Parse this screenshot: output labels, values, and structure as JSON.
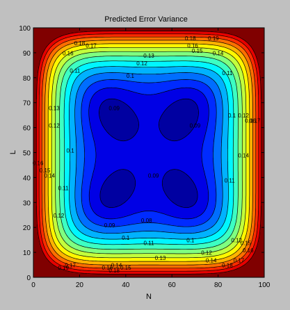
{
  "chart_data": {
    "type": "contour",
    "title": "Predicted Error Variance",
    "xlabel": "N",
    "ylabel": "L",
    "xlim": [
      0,
      100
    ],
    "ylim": [
      0,
      100
    ],
    "x_ticks": [
      "0",
      "20",
      "40",
      "60",
      "80",
      "100"
    ],
    "y_ticks": [
      "0",
      "10",
      "20",
      "30",
      "40",
      "50",
      "60",
      "70",
      "80",
      "90",
      "100"
    ],
    "colormap": "jet",
    "color_range": [
      0.08,
      0.23
    ],
    "contour_levels": [
      0.08,
      0.09,
      0.1,
      0.11,
      0.12,
      0.13,
      0.14,
      0.15,
      0.16,
      0.17,
      0.18,
      0.19,
      0.2,
      0.21,
      0.22
    ],
    "minima": [
      {
        "x": 32,
        "y": 30,
        "value": 0.08
      },
      {
        "x": 68,
        "y": 30,
        "value": 0.08
      },
      {
        "x": 32,
        "y": 68,
        "value": 0.09
      },
      {
        "x": 68,
        "y": 68,
        "value": 0.09
      }
    ],
    "contour_labels": [
      {
        "x": 68,
        "y": 95,
        "text": "0.18"
      },
      {
        "x": 78,
        "y": 95,
        "text": "0.19"
      },
      {
        "x": 20,
        "y": 93,
        "text": "0.18"
      },
      {
        "x": 25,
        "y": 92,
        "text": "0.17"
      },
      {
        "x": 69,
        "y": 92,
        "text": "0.16"
      },
      {
        "x": 71,
        "y": 90,
        "text": "0.15"
      },
      {
        "x": 15,
        "y": 89,
        "text": "0.16"
      },
      {
        "x": 80,
        "y": 89,
        "text": "0.14"
      },
      {
        "x": 50,
        "y": 88,
        "text": "0.13"
      },
      {
        "x": 47,
        "y": 85,
        "text": "0.12"
      },
      {
        "x": 18,
        "y": 82,
        "text": "0.11"
      },
      {
        "x": 84,
        "y": 81,
        "text": "0.11"
      },
      {
        "x": 42,
        "y": 80,
        "text": "0.1"
      },
      {
        "x": 9,
        "y": 67,
        "text": "0.13"
      },
      {
        "x": 9,
        "y": 60,
        "text": "0.12"
      },
      {
        "x": 35,
        "y": 67,
        "text": "0.09"
      },
      {
        "x": 70,
        "y": 60,
        "text": "0.09"
      },
      {
        "x": 86,
        "y": 64,
        "text": "0.1"
      },
      {
        "x": 91,
        "y": 64,
        "text": "0.12"
      },
      {
        "x": 94,
        "y": 62,
        "text": "0.16"
      },
      {
        "x": 96,
        "y": 62,
        "text": "0.17"
      },
      {
        "x": 16,
        "y": 50,
        "text": "0.1"
      },
      {
        "x": 2,
        "y": 45,
        "text": "0.16"
      },
      {
        "x": 5,
        "y": 42,
        "text": "0.15"
      },
      {
        "x": 7,
        "y": 40,
        "text": "0.14"
      },
      {
        "x": 13,
        "y": 35,
        "text": "0.11"
      },
      {
        "x": 52,
        "y": 40,
        "text": "0.09"
      },
      {
        "x": 85,
        "y": 38,
        "text": "0.11"
      },
      {
        "x": 91,
        "y": 48,
        "text": "0.14"
      },
      {
        "x": 11,
        "y": 24,
        "text": "0.12"
      },
      {
        "x": 33,
        "y": 20,
        "text": "0.09"
      },
      {
        "x": 49,
        "y": 22,
        "text": "0.08"
      },
      {
        "x": 40,
        "y": 15,
        "text": "0.1"
      },
      {
        "x": 50,
        "y": 13,
        "text": "0.11"
      },
      {
        "x": 68,
        "y": 14,
        "text": "0.1"
      },
      {
        "x": 55,
        "y": 7,
        "text": "0.13"
      },
      {
        "x": 75,
        "y": 9,
        "text": "0.12"
      },
      {
        "x": 77,
        "y": 6,
        "text": "0.14"
      },
      {
        "x": 88,
        "y": 14,
        "text": "0.12"
      },
      {
        "x": 92,
        "y": 13,
        "text": "0.15"
      },
      {
        "x": 93,
        "y": 10,
        "text": "0.16"
      },
      {
        "x": 84,
        "y": 4,
        "text": "0.18"
      },
      {
        "x": 89,
        "y": 6,
        "text": "0.17"
      },
      {
        "x": 36,
        "y": 4,
        "text": "0.14"
      },
      {
        "x": 40,
        "y": 3,
        "text": "0.15"
      },
      {
        "x": 32,
        "y": 3,
        "text": "0.16"
      },
      {
        "x": 35,
        "y": 2,
        "text": "0.18"
      },
      {
        "x": 13,
        "y": 3,
        "text": "0.19"
      },
      {
        "x": 16,
        "y": 4,
        "text": "0.17"
      }
    ]
  }
}
